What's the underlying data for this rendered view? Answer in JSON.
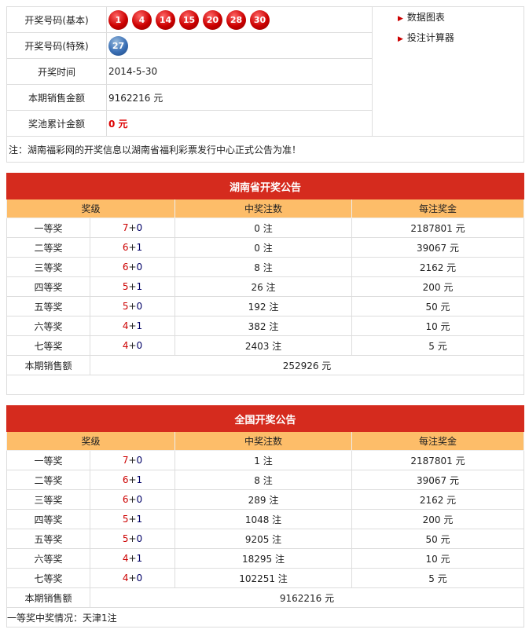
{
  "draw": {
    "labels": [
      "开奖号码(基本)",
      "开奖号码(特殊)",
      "开奖时间",
      "本期销售金额",
      "奖池累计金额"
    ],
    "basic_numbers": [
      "1",
      "4",
      "14",
      "15",
      "20",
      "28",
      "30"
    ],
    "special_number": "27",
    "date": "2014-5-30",
    "sales": "9162216 元",
    "pool": "0 元",
    "links": [
      "数据图表",
      "投注计算器"
    ],
    "note": "注：湖南福彩网的开奖信息以湖南省福利彩票发行中心正式公告为准！"
  },
  "headers": [
    "奖级",
    "中奖注数",
    "每注奖金"
  ],
  "province": {
    "title": "湖南省开奖公告",
    "rows": [
      [
        "一等奖",
        "7",
        "0",
        "0 注",
        "2187801 元"
      ],
      [
        "二等奖",
        "6",
        "1",
        "0 注",
        "39067 元"
      ],
      [
        "三等奖",
        "6",
        "0",
        "8 注",
        "2162 元"
      ],
      [
        "四等奖",
        "5",
        "1",
        "26 注",
        "200 元"
      ],
      [
        "五等奖",
        "5",
        "0",
        "192 注",
        "50 元"
      ],
      [
        "六等奖",
        "4",
        "1",
        "382 注",
        "10 元"
      ],
      [
        "七等奖",
        "4",
        "0",
        "2403 注",
        "5 元"
      ]
    ],
    "sales_label": "本期销售额",
    "sales": "252926 元",
    "footer": ""
  },
  "national": {
    "title": "全国开奖公告",
    "rows": [
      [
        "一等奖",
        "7",
        "0",
        "1 注",
        "2187801 元"
      ],
      [
        "二等奖",
        "6",
        "1",
        "8 注",
        "39067 元"
      ],
      [
        "三等奖",
        "6",
        "0",
        "289 注",
        "2162 元"
      ],
      [
        "四等奖",
        "5",
        "1",
        "1048 注",
        "200 元"
      ],
      [
        "五等奖",
        "5",
        "0",
        "9205 注",
        "50 元"
      ],
      [
        "六等奖",
        "4",
        "1",
        "18295 注",
        "10 元"
      ],
      [
        "七等奖",
        "4",
        "0",
        "102251 注",
        "5 元"
      ]
    ],
    "sales_label": "本期销售额",
    "sales": "9162216 元",
    "footer": "一等奖中奖情况：天津1注"
  }
}
